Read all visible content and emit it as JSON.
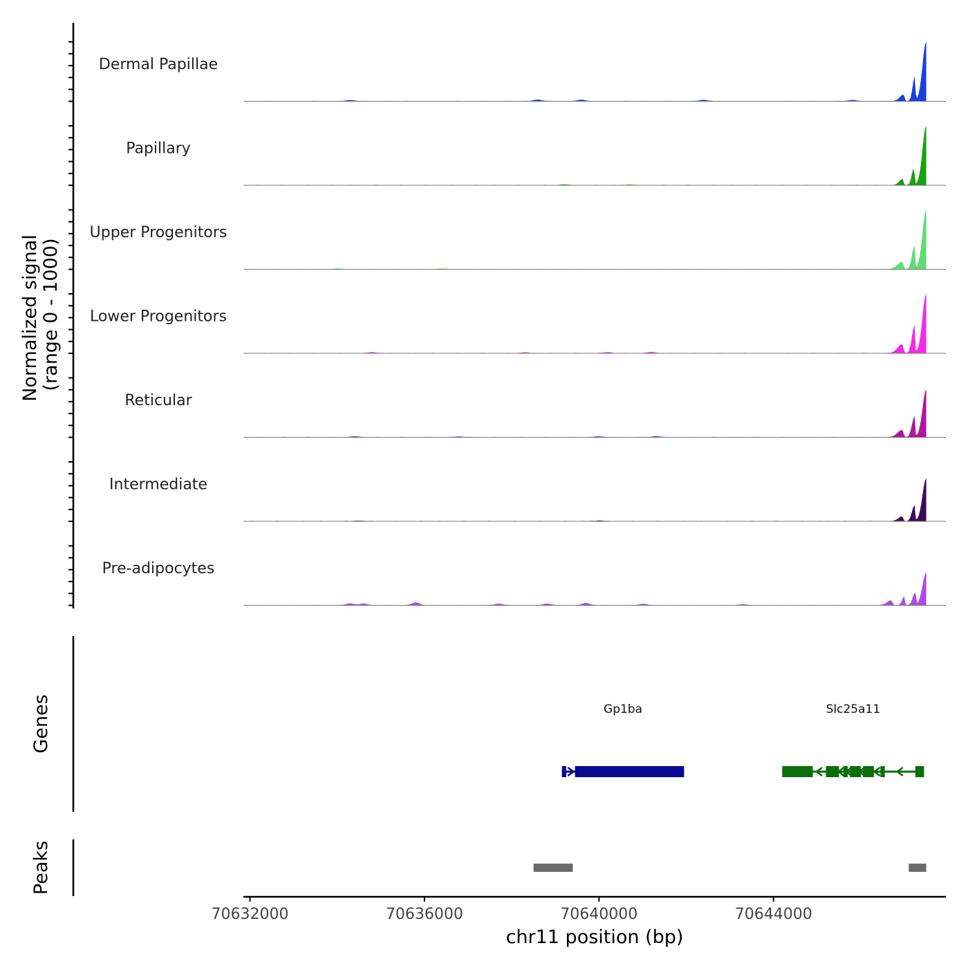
{
  "chart_data": {
    "type": "area",
    "title": "",
    "ylabel_line1": "Normalized signal",
    "ylabel_line2": "(range 0 - 1000)",
    "xlabel": "chr11 position (bp)",
    "xlim": [
      70631850,
      70647950
    ],
    "ylim": [
      0,
      1000
    ],
    "x_ticks": [
      70632000,
      70636000,
      70640000,
      70644000
    ],
    "x_tick_labels": [
      "70632000",
      "70636000",
      "70640000",
      "70644000"
    ],
    "signal_range": [
      70632000,
      70647500
    ],
    "tracks": [
      {
        "name": "Dermal Papillae",
        "color": "#1b3fe0",
        "peaks": [
          {
            "x": 70647500,
            "y": 1000,
            "w": 120
          },
          {
            "x": 70647240,
            "y": 420,
            "w": 70
          },
          {
            "x": 70646980,
            "y": 110,
            "w": 120
          }
        ],
        "bumps": [
          {
            "x": 70634300,
            "y": 18
          },
          {
            "x": 70638600,
            "y": 25
          },
          {
            "x": 70639600,
            "y": 22
          },
          {
            "x": 70642400,
            "y": 20
          },
          {
            "x": 70645800,
            "y": 18
          }
        ]
      },
      {
        "name": "Papillary",
        "color": "#1aa010",
        "peaks": [
          {
            "x": 70647500,
            "y": 1000,
            "w": 120
          },
          {
            "x": 70647220,
            "y": 300,
            "w": 70
          },
          {
            "x": 70646960,
            "y": 100,
            "w": 110
          }
        ],
        "bumps": [
          {
            "x": 70639200,
            "y": 10
          },
          {
            "x": 70640700,
            "y": 8
          }
        ]
      },
      {
        "name": "Upper Progenitors",
        "color": "#5fdc72",
        "peaks": [
          {
            "x": 70647500,
            "y": 1000,
            "w": 120
          },
          {
            "x": 70647230,
            "y": 380,
            "w": 80
          },
          {
            "x": 70646950,
            "y": 120,
            "w": 150
          }
        ],
        "bumps": [
          {
            "x": 70634000,
            "y": 10
          },
          {
            "x": 70636400,
            "y": 10
          }
        ]
      },
      {
        "name": "Lower Progenitors",
        "color": "#f22ae8",
        "peaks": [
          {
            "x": 70647500,
            "y": 1000,
            "w": 120
          },
          {
            "x": 70647230,
            "y": 460,
            "w": 80
          },
          {
            "x": 70646950,
            "y": 150,
            "w": 150
          }
        ],
        "bumps": [
          {
            "x": 70634800,
            "y": 15
          },
          {
            "x": 70638300,
            "y": 12
          },
          {
            "x": 70640200,
            "y": 15
          },
          {
            "x": 70641200,
            "y": 18
          }
        ]
      },
      {
        "name": "Reticular",
        "color": "#b1169e",
        "peaks": [
          {
            "x": 70647500,
            "y": 800,
            "w": 120
          },
          {
            "x": 70647230,
            "y": 350,
            "w": 80
          },
          {
            "x": 70646950,
            "y": 120,
            "w": 150
          }
        ],
        "bumps": [
          {
            "x": 70634400,
            "y": 12
          },
          {
            "x": 70636800,
            "y": 10
          },
          {
            "x": 70640000,
            "y": 12
          },
          {
            "x": 70641300,
            "y": 15
          }
        ]
      },
      {
        "name": "Intermediate",
        "color": "#3a0a58",
        "peaks": [
          {
            "x": 70647500,
            "y": 720,
            "w": 120
          },
          {
            "x": 70647230,
            "y": 260,
            "w": 80
          },
          {
            "x": 70646950,
            "y": 80,
            "w": 120
          }
        ],
        "bumps": [
          {
            "x": 70634500,
            "y": 8
          },
          {
            "x": 70640000,
            "y": 10
          }
        ]
      },
      {
        "name": "Pre-adipocytes",
        "color": "#b04ae8",
        "peaks": [
          {
            "x": 70647500,
            "y": 550,
            "w": 120
          },
          {
            "x": 70647250,
            "y": 220,
            "w": 80
          },
          {
            "x": 70647000,
            "y": 150,
            "w": 70
          },
          {
            "x": 70646700,
            "y": 80,
            "w": 140
          }
        ],
        "bumps": [
          {
            "x": 70634300,
            "y": 30
          },
          {
            "x": 70634600,
            "y": 25
          },
          {
            "x": 70635800,
            "y": 45
          },
          {
            "x": 70637700,
            "y": 25
          },
          {
            "x": 70638800,
            "y": 25
          },
          {
            "x": 70639700,
            "y": 35
          },
          {
            "x": 70641000,
            "y": 20
          },
          {
            "x": 70643300,
            "y": 12
          }
        ]
      }
    ],
    "genes_label": "Genes",
    "genes": [
      {
        "name": "Gp1ba",
        "start": 70639150,
        "end": 70641950,
        "strand": "+",
        "color": "#0a0a90",
        "exons": [
          [
            70639150,
            70639250
          ],
          [
            70639450,
            70641950
          ]
        ]
      },
      {
        "name": "Slc25a11",
        "start": 70644200,
        "end": 70647450,
        "strand": "-",
        "color": "#0b6e0b",
        "exons": [
          [
            70644200,
            70644900
          ],
          [
            70645200,
            70645500
          ],
          [
            70645600,
            70645700
          ],
          [
            70645750,
            70646000
          ],
          [
            70646050,
            70646300
          ],
          [
            70646450,
            70646550
          ],
          [
            70647250,
            70647450
          ]
        ]
      }
    ],
    "peaks_label": "Peaks",
    "peak_regions": [
      [
        70638500,
        70639400
      ],
      [
        70647100,
        70647500
      ]
    ],
    "peak_color": "#6b6b6b"
  }
}
